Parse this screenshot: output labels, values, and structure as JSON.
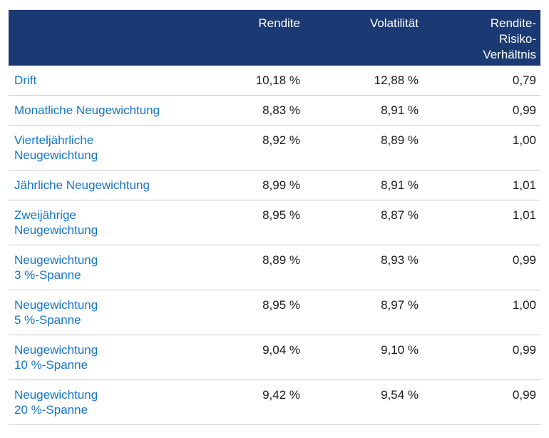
{
  "table": {
    "columns": [
      {
        "label": ""
      },
      {
        "label": "Rendite"
      },
      {
        "label": "Volatilität"
      },
      {
        "label": "Rendite-\nRisiko-\nVerhältnis"
      }
    ],
    "rows": [
      {
        "label": "Drift",
        "rendite": "10,18 %",
        "volatilitaet": "12,88 %",
        "ratio": "0,79"
      },
      {
        "label": "Monatliche Neugewichtung",
        "rendite": "8,83 %",
        "volatilitaet": "8,91 %",
        "ratio": "0,99"
      },
      {
        "label": "Vierteljährliche\nNeugewichtung",
        "rendite": "8,92 %",
        "volatilitaet": "8,89 %",
        "ratio": "1,00"
      },
      {
        "label": "Jährliche Neugewichtung",
        "rendite": "8,99 %",
        "volatilitaet": "8,91 %",
        "ratio": "1,01"
      },
      {
        "label": "Zweijährige\nNeugewichtung",
        "rendite": "8,95 %",
        "volatilitaet": "8,87 %",
        "ratio": "1,01"
      },
      {
        "label": "Neugewichtung\n3 %-Spanne",
        "rendite": "8,89 %",
        "volatilitaet": "8,93 %",
        "ratio": "0,99"
      },
      {
        "label": "Neugewichtung\n5 %-Spanne",
        "rendite": "8,95 %",
        "volatilitaet": "8,97 %",
        "ratio": "1,00"
      },
      {
        "label": "Neugewichtung\n10 %-Spanne",
        "rendite": "9,04 %",
        "volatilitaet": "9,10 %",
        "ratio": "0,99"
      },
      {
        "label": "Neugewichtung\n20 %-Spanne",
        "rendite": "9,42 %",
        "volatilitaet": "9,54 %",
        "ratio": "0,99"
      }
    ]
  },
  "colors": {
    "header_background": "#1b3a73",
    "header_text": "#ffffff",
    "row_label_blue": "#1575c8",
    "value_text": "#1a1a1a",
    "separator_gray": "#cbcbcb",
    "page_background": "#ffffff"
  },
  "chart_data": {
    "type": "table",
    "title": "",
    "columns": [
      "",
      "Rendite",
      "Volatilität",
      "Rendite-Risiko-Verhältnis"
    ],
    "rows": [
      [
        "Drift",
        "10,18 %",
        "12,88 %",
        "0,79"
      ],
      [
        "Monatliche Neugewichtung",
        "8,83 %",
        "8,91 %",
        "0,99"
      ],
      [
        "Vierteljährliche Neugewichtung",
        "8,92 %",
        "8,89 %",
        "1,00"
      ],
      [
        "Jährliche Neugewichtung",
        "8,99 %",
        "8,91 %",
        "1,01"
      ],
      [
        "Zweijährige Neugewichtung",
        "8,95 %",
        "8,87 %",
        "1,01"
      ],
      [
        "Neugewichtung 3 %-Spanne",
        "8,89 %",
        "8,93 %",
        "0,99"
      ],
      [
        "Neugewichtung 5 %-Spanne",
        "8,95 %",
        "8,97 %",
        "1,00"
      ],
      [
        "Neugewichtung 10 %-Spanne",
        "9,04 %",
        "9,10 %",
        "0,99"
      ],
      [
        "Neugewichtung 20 %-Spanne",
        "9,42 %",
        "9,54 %",
        "0,99"
      ]
    ],
    "numeric": {
      "rendite_pct": [
        10.18,
        8.83,
        8.92,
        8.99,
        8.95,
        8.89,
        8.95,
        9.04,
        9.42
      ],
      "volatilitaet_pct": [
        12.88,
        8.91,
        8.89,
        8.91,
        8.87,
        8.93,
        8.97,
        9.1,
        9.54
      ],
      "rendite_risiko_verhaeltnis": [
        0.79,
        0.99,
        1.0,
        1.01,
        1.01,
        0.99,
        1.0,
        0.99,
        0.99
      ]
    }
  }
}
